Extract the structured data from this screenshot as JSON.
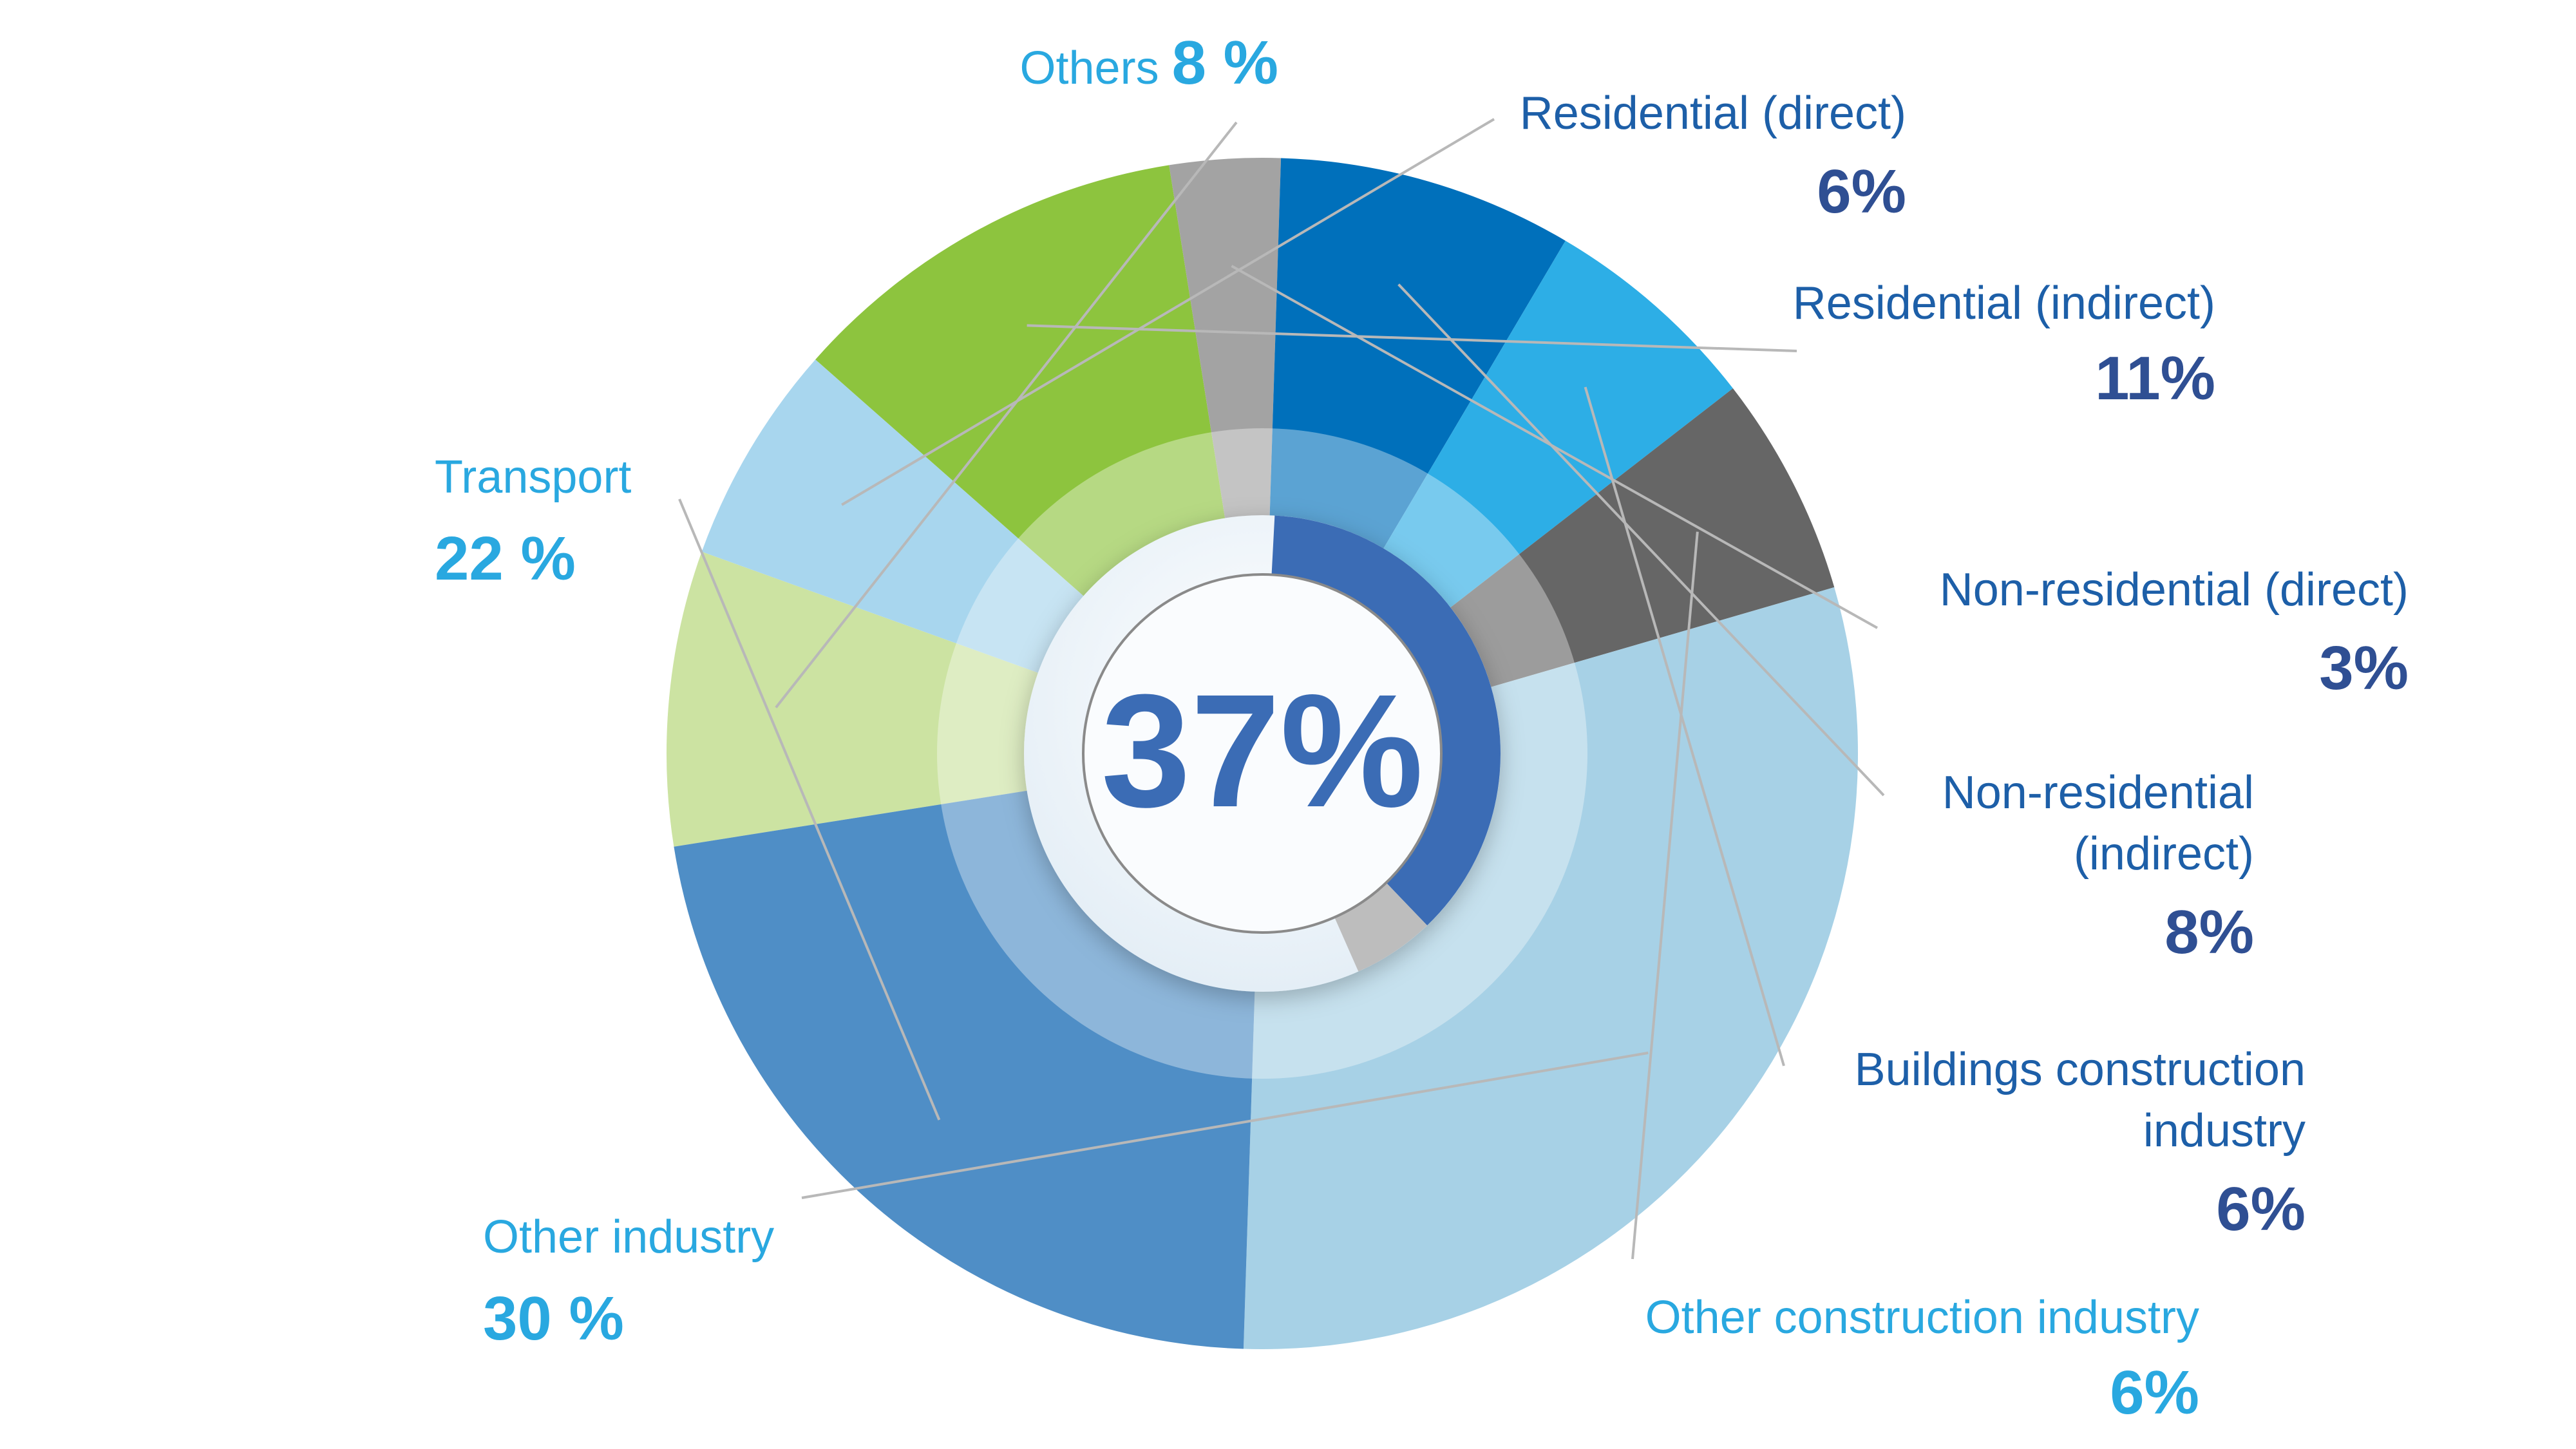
{
  "chart_data": {
    "type": "pie",
    "center_label": "37%",
    "legend": "none",
    "colors": {
      "dark_blue_text": "#2f4f93",
      "light_blue_text": "#29a8e0",
      "center_ring": "#3b6cb5"
    },
    "slices": [
      {
        "label_lines": [
          "Others"
        ],
        "inline_value": "8 %",
        "value": 8,
        "color": "#cce3a2",
        "label_color": "#29a8e0"
      },
      {
        "label_lines": [
          "Residential (direct)"
        ],
        "value_text": "6%",
        "value": 6,
        "color": "#a8d6ee",
        "label_color": "#1d5fa8"
      },
      {
        "label_lines": [
          "Residential (indirect)"
        ],
        "value_text": "11%",
        "value": 11,
        "color": "#8dc43e",
        "label_color": "#1d5fa8"
      },
      {
        "label_lines": [
          "Non-residential (direct)"
        ],
        "value_text": "3%",
        "value": 3,
        "color": "#a3a3a3",
        "label_color": "#1d5fa8"
      },
      {
        "label_lines": [
          "Non-residential",
          "(indirect)"
        ],
        "value_text": "8%",
        "value": 8,
        "color": "#0070bb",
        "label_color": "#1d5fa8"
      },
      {
        "label_lines": [
          "Buildings construction",
          "industry"
        ],
        "value_text": "6%",
        "value": 6,
        "color": "#2daee6",
        "label_color": "#1d5fa8"
      },
      {
        "label_lines": [
          "Other construction industry"
        ],
        "value_text": "6%",
        "value": 6,
        "color": "#666666",
        "label_color": "#29a8e0"
      },
      {
        "label_lines": [
          "Other industry"
        ],
        "value_text": "30 %",
        "value": 30,
        "color": "#a7d1e6",
        "label_color": "#29a8e0"
      },
      {
        "label_lines": [
          "Transport"
        ],
        "value_text": "22 %",
        "value": 22,
        "color": "#4f8ec6",
        "label_color": "#29a8e0"
      }
    ]
  }
}
